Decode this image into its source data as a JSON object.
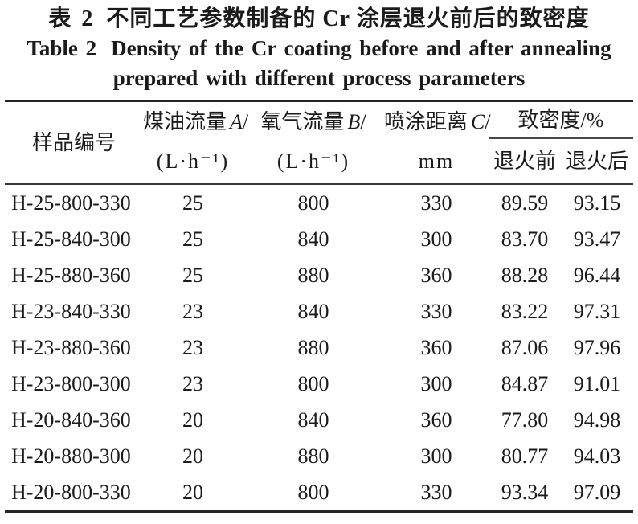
{
  "colors": {
    "background": "#ffffff",
    "text": "#1b1b1b",
    "rule_heavy": "#262626",
    "rule_light": "#474747"
  },
  "title": {
    "cn_prefix": "表 2",
    "cn_text": "不同工艺参数制备的 Cr 涂层退火前后的致密度",
    "en_prefix": "Table 2",
    "en_line1": "Density of the Cr coating before and after annealing",
    "en_line2": "prepared with different process parameters"
  },
  "table": {
    "header": {
      "sample": "样品编号",
      "kerosene": {
        "name": "煤油流量",
        "var": "A",
        "slash": "/",
        "unit": "(L·h⁻¹)"
      },
      "oxygen": {
        "name": "氧气流量",
        "var": "B",
        "slash": "/",
        "unit": "(L·h⁻¹)"
      },
      "distance": {
        "name": "喷涂距离",
        "var": "C",
        "slash": "/",
        "unit": "mm"
      },
      "density": {
        "label": "致密度/%",
        "before": "退火前",
        "after": "退火后"
      }
    },
    "col_names": [
      "sample-id",
      "kerosene-flow",
      "oxygen-flow",
      "spray-distance",
      "density-before-annealing",
      "density-after-annealing"
    ],
    "rows": [
      [
        "H-25-800-330",
        "25",
        "800",
        "330",
        "89.59",
        "93.15"
      ],
      [
        "H-25-840-300",
        "25",
        "840",
        "300",
        "83.70",
        "93.47"
      ],
      [
        "H-25-880-360",
        "25",
        "880",
        "360",
        "88.28",
        "96.44"
      ],
      [
        "H-23-840-330",
        "23",
        "840",
        "330",
        "83.22",
        "97.31"
      ],
      [
        "H-23-880-360",
        "23",
        "880",
        "360",
        "87.06",
        "97.96"
      ],
      [
        "H-23-800-300",
        "23",
        "800",
        "300",
        "84.87",
        "91.01"
      ],
      [
        "H-20-840-360",
        "20",
        "840",
        "360",
        "77.80",
        "94.98"
      ],
      [
        "H-20-880-300",
        "20",
        "880",
        "300",
        "80.77",
        "94.03"
      ],
      [
        "H-20-800-330",
        "20",
        "800",
        "330",
        "93.34",
        "97.09"
      ]
    ]
  }
}
